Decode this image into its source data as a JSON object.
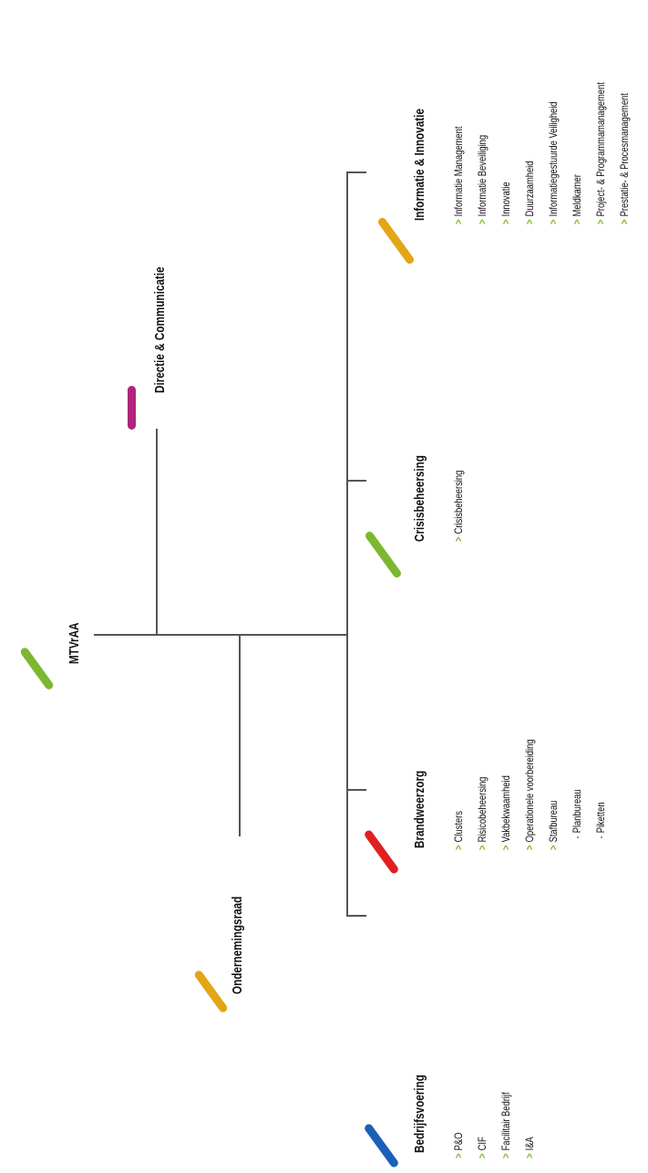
{
  "colors": {
    "green": "#7cb82f",
    "purple": "#b0247a",
    "orange": "#e2a617",
    "red": "#e02020",
    "blue": "#1c5fb6",
    "line": "#555555"
  },
  "root": {
    "title": "MTVrAA"
  },
  "directie": {
    "title": "Directie & Communicatie"
  },
  "ondernemingsraad": {
    "title": "Ondernemingsraad"
  },
  "departments": {
    "bedrijfsvoering": {
      "title": "Bedrijfsvoering",
      "items": [
        "P&O",
        "CIF",
        "Facilitair Bedrijf",
        "I&A"
      ]
    },
    "brandweerzorg": {
      "title": "Brandweerzorg",
      "items": [
        "Clusters",
        "Risicobeheersing",
        "Vakbekwaamheid",
        "Operationele voorbereiding",
        "Stafbureau"
      ],
      "subitems": [
        "Planbureau",
        "Piketten"
      ]
    },
    "crisisbeheersing": {
      "title": "Crisisbeheersing",
      "items": [
        "Crisisbeheersing"
      ]
    },
    "informatie": {
      "title": "Informatie & Innovatie",
      "items": [
        "Informatie Management",
        "Informatie Beveiliging",
        "Innovatie",
        "Duurzaamheid",
        "Informatiegestuurde Veiligheid",
        "Meldkamer",
        "Project- & Programmamanagement",
        "Prestatie- & Procesmanagement"
      ]
    }
  }
}
